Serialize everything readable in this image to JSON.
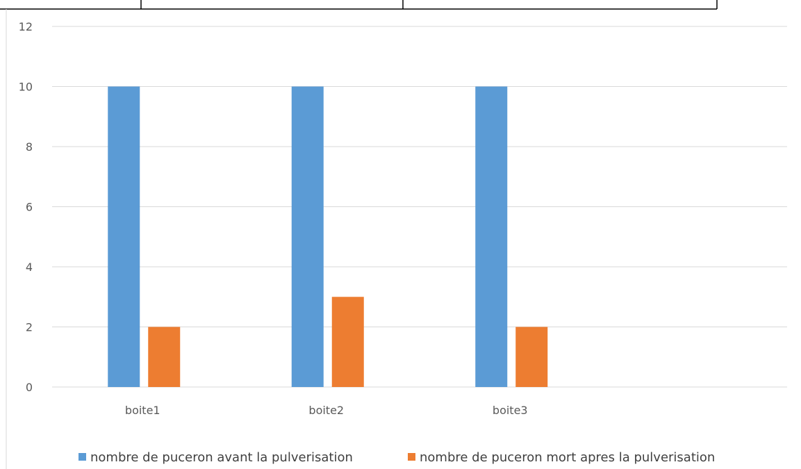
{
  "chart_data": {
    "type": "bar",
    "categories": [
      "boite1",
      "boite2",
      "boite3",
      ""
    ],
    "series": [
      {
        "name": "nombre de puceron avant la pulverisation",
        "values": [
          10,
          10,
          10,
          null
        ],
        "color": "#5B9BD5"
      },
      {
        "name": "nombre de puceron mort apres la pulverisation",
        "values": [
          2,
          3,
          2,
          null
        ],
        "color": "#ED7D31"
      }
    ],
    "ylim": [
      0,
      12
    ],
    "yticks": [
      0,
      2,
      4,
      6,
      8,
      10,
      12
    ],
    "grid": true,
    "legend": "bottom",
    "title": "",
    "xlabel": "",
    "ylabel": ""
  }
}
